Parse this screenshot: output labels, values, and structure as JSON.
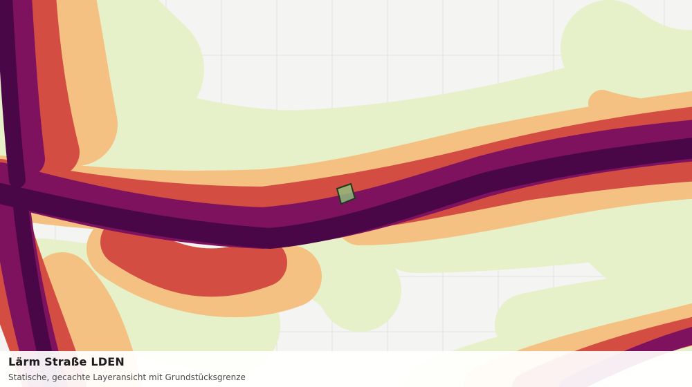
{
  "map": {
    "title": "Lärm Straße LDEN",
    "subtitle": "Statische, gecachte Layeransicht mit Grundstücksgrenze",
    "grid_visible": true,
    "colors": {
      "background": "#f4f4f2",
      "grid": "#e2e2e0",
      "band_1": "#e6f0c9",
      "band_2": "#f4c182",
      "band_3": "#d34d43",
      "band_4": "#7e125e",
      "band_5": "#4a0748",
      "parcel_fill": "#8fc47f",
      "parcel_stroke": "#1c3a1c"
    },
    "icons": {
      "parcel": "parcel-boundary-icon"
    }
  }
}
